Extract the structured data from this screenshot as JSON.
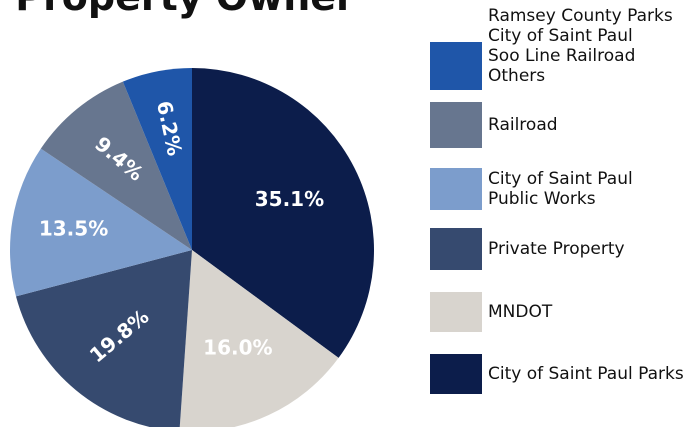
{
  "chart_data": {
    "type": "pie",
    "title": "Property Owner",
    "categories": [
      "City of Saint Paul Parks",
      "MNDOT",
      "Private Property",
      "City of Saint Paul\nPublic Works",
      "Railroad",
      "Ramsey County Parks\nCity of Saint Paul\nSoo Line Railroad\nOthers"
    ],
    "values": [
      35.1,
      16.0,
      19.8,
      13.5,
      9.4,
      6.2
    ],
    "value_labels": [
      "35.1%",
      "16.0%",
      "19.8%",
      "13.5%",
      "9.4%",
      "6.2%"
    ],
    "colors": [
      "#0c1d4b",
      "#d8d4ce",
      "#364a6f",
      "#7c9dcc",
      "#67768f",
      "#1f56a9"
    ]
  }
}
